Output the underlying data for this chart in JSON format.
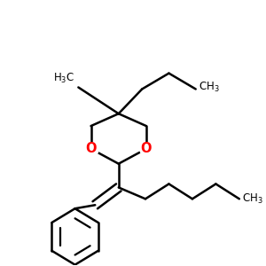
{
  "bg_color": "#ffffff",
  "bond_color": "#000000",
  "oxygen_color": "#ff0000",
  "line_width": 1.8,
  "font_size": 8.5,
  "figsize": [
    3.0,
    3.0
  ],
  "dpi": 100
}
